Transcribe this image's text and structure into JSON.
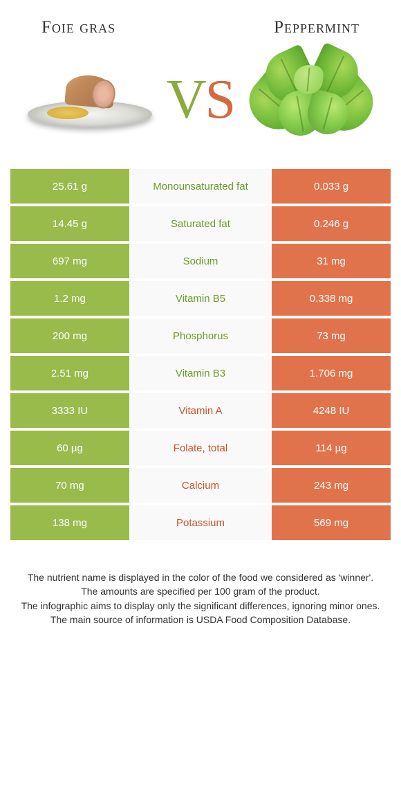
{
  "type": "infographic",
  "header": {
    "left_title": "Foie gras",
    "right_title": "Peppermint"
  },
  "vs": {
    "v": "V",
    "s": "S"
  },
  "colors": {
    "left_cell": "#98bb4c",
    "right_cell": "#e1734c",
    "mid_bg": "#f9f9f9",
    "mid_green": "#6f9a2a",
    "mid_orange": "#c8542a",
    "background": "#ffffff"
  },
  "rows": [
    {
      "left": "25.61 g",
      "label": "Monounsaturated fat",
      "right": "0.033 g",
      "winner": "green"
    },
    {
      "left": "14.45 g",
      "label": "Saturated fat",
      "right": "0.246 g",
      "winner": "green"
    },
    {
      "left": "697 mg",
      "label": "Sodium",
      "right": "31 mg",
      "winner": "green"
    },
    {
      "left": "1.2 mg",
      "label": "Vitamin B5",
      "right": "0.338 mg",
      "winner": "green"
    },
    {
      "left": "200 mg",
      "label": "Phosphorus",
      "right": "73 mg",
      "winner": "green"
    },
    {
      "left": "2.51 mg",
      "label": "Vitamin B3",
      "right": "1.706 mg",
      "winner": "green"
    },
    {
      "left": "3333 IU",
      "label": "Vitamin A",
      "right": "4248 IU",
      "winner": "orange"
    },
    {
      "left": "60 µg",
      "label": "Folate, total",
      "right": "114 µg",
      "winner": "orange"
    },
    {
      "left": "70 mg",
      "label": "Calcium",
      "right": "243 mg",
      "winner": "orange"
    },
    {
      "left": "138 mg",
      "label": "Potassium",
      "right": "569 mg",
      "winner": "orange"
    }
  ],
  "footer": {
    "l1": "The nutrient name is displayed in the color of the food we considered as 'winner'.",
    "l2": "The amounts are specified per 100 gram of the product.",
    "l3": "The infographic aims to display only the significant differences, ignoring minor ones.",
    "l4": "The main source of information is USDA Food Composition Database."
  }
}
